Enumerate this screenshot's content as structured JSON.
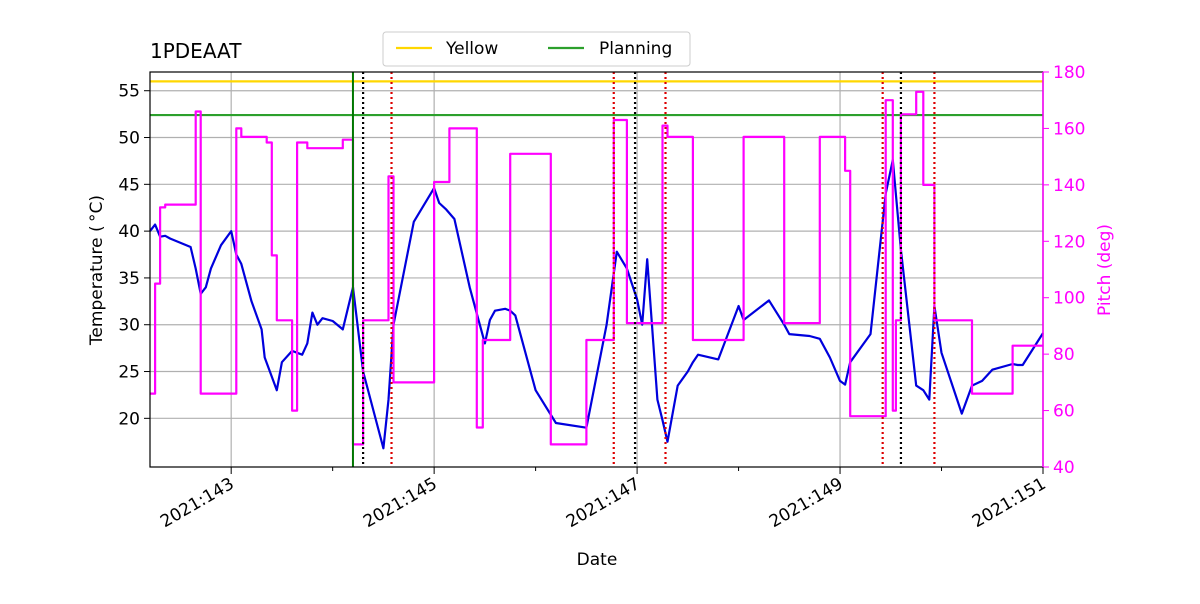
{
  "chart_data": {
    "type": "line",
    "title": "1PDEAAT",
    "xlabel": "Date",
    "ylabel": "Temperature ($^\\circ$C)",
    "ylabel_display": "Temperature ( °C)",
    "y2label": "Pitch (deg)",
    "xlim": [
      142.2,
      151.0
    ],
    "ylim": [
      14.8,
      57.0
    ],
    "y2lim": [
      40,
      180
    ],
    "x_ticks": [
      143,
      145,
      147,
      149,
      151
    ],
    "x_tick_labels": [
      "2021:143",
      "2021:145",
      "2021:147",
      "2021:149",
      "2021:151"
    ],
    "x_minor_ticks": [
      144,
      146,
      148,
      150
    ],
    "y_ticks": [
      20,
      25,
      30,
      35,
      40,
      45,
      50,
      55
    ],
    "y2_ticks": [
      40,
      60,
      80,
      100,
      120,
      140,
      160,
      180
    ],
    "grid": true,
    "legend_placement": "top-center",
    "limits": [
      {
        "name": "Yellow",
        "value": 56.0,
        "color": "#ffd700"
      },
      {
        "name": "Planning",
        "value": 52.4,
        "color": "#2ca02c"
      }
    ],
    "markers": {
      "green": {
        "x": 144.2,
        "color": "#007700"
      },
      "black": {
        "x": [
          144.3,
          146.98,
          149.6
        ],
        "color": "#000000"
      },
      "red": {
        "x": [
          144.58,
          146.77,
          147.28,
          149.42,
          149.93
        ],
        "color": "#dd0000"
      }
    },
    "series": [
      {
        "name": "",
        "axis": "left",
        "color": "#0000dd",
        "x": [
          142.2,
          142.25,
          142.3,
          142.35,
          142.4,
          142.6,
          142.65,
          142.7,
          142.75,
          142.8,
          142.9,
          143.0,
          143.05,
          143.1,
          143.2,
          143.3,
          143.33,
          143.45,
          143.5,
          143.6,
          143.7,
          143.75,
          143.8,
          143.85,
          143.9,
          144.0,
          144.1,
          144.2,
          144.3,
          144.5,
          144.55,
          144.6,
          144.8,
          145.0,
          145.05,
          145.12,
          145.2,
          145.35,
          145.45,
          145.5,
          145.55,
          145.6,
          145.7,
          145.75,
          145.8,
          146.0,
          146.2,
          146.5,
          146.7,
          146.8,
          146.9,
          147.0,
          147.05,
          147.1,
          147.2,
          147.25,
          147.3,
          147.4,
          147.5,
          147.55,
          147.6,
          147.8,
          148.0,
          148.05,
          148.3,
          148.45,
          148.5,
          148.7,
          148.8,
          148.9,
          149.0,
          149.05,
          149.1,
          149.3,
          149.45,
          149.52,
          149.6,
          149.75,
          149.82,
          149.88,
          149.93,
          150.0,
          150.2,
          150.3,
          150.4,
          150.5,
          150.7,
          150.75,
          150.8,
          151.0
        ],
        "values": [
          40.0,
          40.7,
          39.4,
          39.5,
          39.2,
          38.3,
          36.0,
          33.3,
          34.0,
          36.0,
          38.5,
          40.0,
          37.5,
          36.5,
          32.5,
          29.5,
          26.5,
          23.0,
          26.0,
          27.2,
          26.8,
          28.0,
          31.3,
          30.0,
          30.7,
          30.4,
          29.5,
          34.0,
          25.0,
          16.8,
          22.0,
          30.0,
          41.0,
          44.6,
          43.0,
          42.3,
          41.3,
          34.0,
          30.0,
          28.0,
          30.5,
          31.5,
          31.7,
          31.5,
          31.0,
          23.0,
          19.5,
          19.0,
          30.0,
          37.8,
          36.0,
          32.7,
          30.0,
          37.0,
          22.0,
          19.8,
          17.5,
          23.5,
          25.0,
          26.0,
          26.8,
          26.3,
          32.0,
          30.5,
          32.6,
          30.0,
          29.0,
          28.8,
          28.5,
          26.5,
          24.0,
          23.6,
          26.0,
          29.0,
          44.0,
          47.6,
          38.0,
          23.5,
          23.0,
          22.0,
          32.0,
          27.0,
          20.5,
          23.5,
          24.0,
          25.2,
          25.8,
          25.7,
          25.7,
          29.1
        ]
      },
      {
        "name": "",
        "axis": "right",
        "color": "#ff00ff",
        "x": [
          142.2,
          142.25,
          142.25,
          142.3,
          142.3,
          142.35,
          142.35,
          142.65,
          142.65,
          142.7,
          142.7,
          143.05,
          143.05,
          143.1,
          143.1,
          143.35,
          143.35,
          143.4,
          143.4,
          143.45,
          143.45,
          143.6,
          143.6,
          143.65,
          143.65,
          143.75,
          143.75,
          143.8,
          143.8,
          144.1,
          144.1,
          144.2,
          144.2,
          144.3,
          144.3,
          144.32,
          144.32,
          144.55,
          144.55,
          144.6,
          144.6,
          145.0,
          145.0,
          145.15,
          145.15,
          145.42,
          145.42,
          145.48,
          145.48,
          145.75,
          145.75,
          146.15,
          146.15,
          146.5,
          146.5,
          146.77,
          146.77,
          146.9,
          146.9,
          147.25,
          147.25,
          147.3,
          147.3,
          147.55,
          147.55,
          148.05,
          148.05,
          148.45,
          148.45,
          148.8,
          148.8,
          149.05,
          149.05,
          149.1,
          149.1,
          149.45,
          149.45,
          149.52,
          149.52,
          149.55,
          149.55,
          149.6,
          149.6,
          149.75,
          149.75,
          149.82,
          149.82,
          149.93,
          149.93,
          150.3,
          150.3,
          150.7,
          150.7,
          150.8,
          150.8,
          151.0
        ],
        "values": [
          66,
          66,
          105,
          105,
          132,
          132,
          133,
          133,
          166,
          166,
          66,
          66,
          160,
          160,
          157,
          157,
          155,
          155,
          115,
          115,
          92,
          92,
          60,
          60,
          155,
          155,
          153,
          153,
          153,
          153,
          156,
          156,
          48,
          48,
          92,
          92,
          92,
          92,
          143,
          143,
          70,
          70,
          141,
          141,
          160,
          160,
          54,
          54,
          85,
          85,
          151,
          151,
          48,
          48,
          85,
          85,
          163,
          163,
          91,
          91,
          161,
          161,
          157,
          157,
          85,
          85,
          157,
          157,
          91,
          91,
          157,
          157,
          145,
          145,
          58,
          58,
          170,
          170,
          60,
          60,
          92,
          92,
          165,
          165,
          173,
          173,
          140,
          140,
          92,
          92,
          66,
          66,
          83,
          83,
          83,
          83
        ]
      }
    ]
  }
}
